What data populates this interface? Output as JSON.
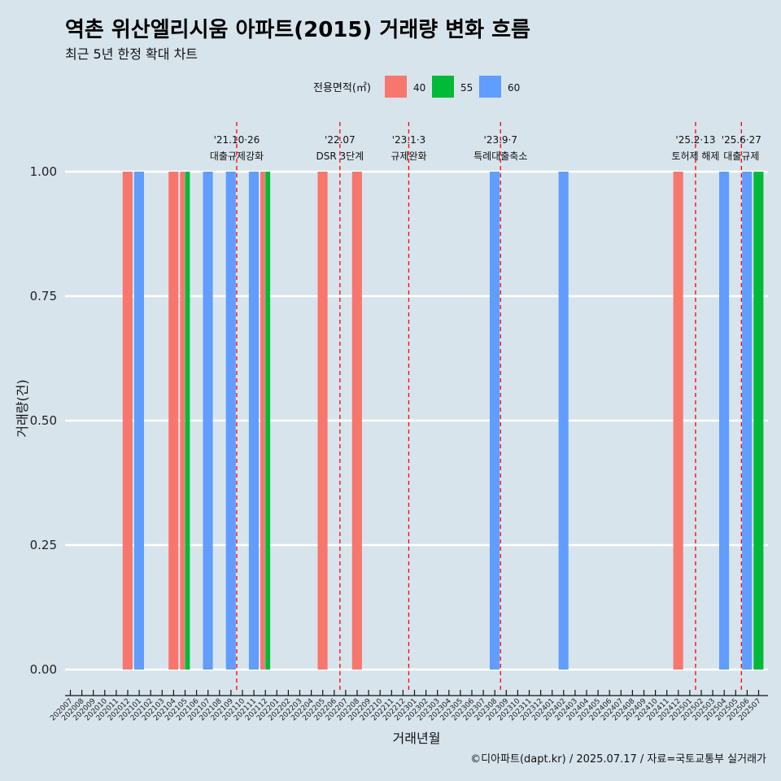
{
  "chart_data": {
    "type": "bar",
    "title": "역촌 위산엘리시움 아파트(2015) 거래량 변화 흐름",
    "subtitle": "최근 5년 한정 확대 차트",
    "caption": "©디아파트(dapt.kr) / 2025.07.17 / 자료=국토교통부 실거래가",
    "xlabel": "거래년월",
    "ylabel": "거래량(건)",
    "ylim": [
      0,
      1
    ],
    "yticks": [
      "0.00",
      "0.25",
      "0.50",
      "0.75",
      "1.00"
    ],
    "legend": {
      "title": "전용면적(㎡)",
      "position": "top",
      "items": [
        {
          "name": "40",
          "color": "#F8766D"
        },
        {
          "name": "55",
          "color": "#00BA38"
        },
        {
          "name": "60",
          "color": "#619CFF"
        }
      ]
    },
    "categories": [
      "202007",
      "202008",
      "202009",
      "202010",
      "202011",
      "202012",
      "202101",
      "202102",
      "202103",
      "202104",
      "202105",
      "202106",
      "202107",
      "202108",
      "202109",
      "202110",
      "202111",
      "202112",
      "202201",
      "202202",
      "202203",
      "202204",
      "202205",
      "202206",
      "202207",
      "202208",
      "202209",
      "202210",
      "202211",
      "202212",
      "202301",
      "202302",
      "202303",
      "202304",
      "202305",
      "202306",
      "202307",
      "202308",
      "202309",
      "202310",
      "202311",
      "202312",
      "202401",
      "202402",
      "202403",
      "202404",
      "202405",
      "202406",
      "202407",
      "202408",
      "202409",
      "202410",
      "202411",
      "202412",
      "202501",
      "202502",
      "202503",
      "202504",
      "202505",
      "202506",
      "202507"
    ],
    "bars": [
      {
        "month": "202012",
        "area": "40",
        "value": 1
      },
      {
        "month": "202101",
        "area": "60",
        "value": 1
      },
      {
        "month": "202104",
        "area": "40",
        "value": 1
      },
      {
        "month": "202105",
        "area": "40",
        "value": 1
      },
      {
        "month": "202105",
        "area": "55",
        "value": 1
      },
      {
        "month": "202107",
        "area": "60",
        "value": 1
      },
      {
        "month": "202109",
        "area": "60",
        "value": 1
      },
      {
        "month": "202111",
        "area": "60",
        "value": 1
      },
      {
        "month": "202112",
        "area": "40",
        "value": 1
      },
      {
        "month": "202112",
        "area": "55",
        "value": 1
      },
      {
        "month": "202205",
        "area": "40",
        "value": 1
      },
      {
        "month": "202208",
        "area": "40",
        "value": 1
      },
      {
        "month": "202308",
        "area": "60",
        "value": 1
      },
      {
        "month": "202402",
        "area": "60",
        "value": 1
      },
      {
        "month": "202412",
        "area": "40",
        "value": 1
      },
      {
        "month": "202504",
        "area": "60",
        "value": 1
      },
      {
        "month": "202506",
        "area": "60",
        "value": 1
      },
      {
        "month": "202507",
        "area": "55",
        "value": 1
      }
    ],
    "events": [
      {
        "month": "202110",
        "label1": "'21.10·26",
        "label2": "대출규제강화"
      },
      {
        "month": "202207",
        "label1": "'22.07",
        "label2": "DSR 3단계"
      },
      {
        "month": "202301",
        "label1": "'23.1·3",
        "label2": "규제완화"
      },
      {
        "month": "202309",
        "label1": "'23.9·7",
        "label2": "특례대출축소"
      },
      {
        "month": "202502",
        "label1": "'25.2·13",
        "label2": "토허제 해제"
      },
      {
        "month": "202506",
        "label1": "'25.6·27",
        "label2": "대출규제"
      }
    ]
  }
}
